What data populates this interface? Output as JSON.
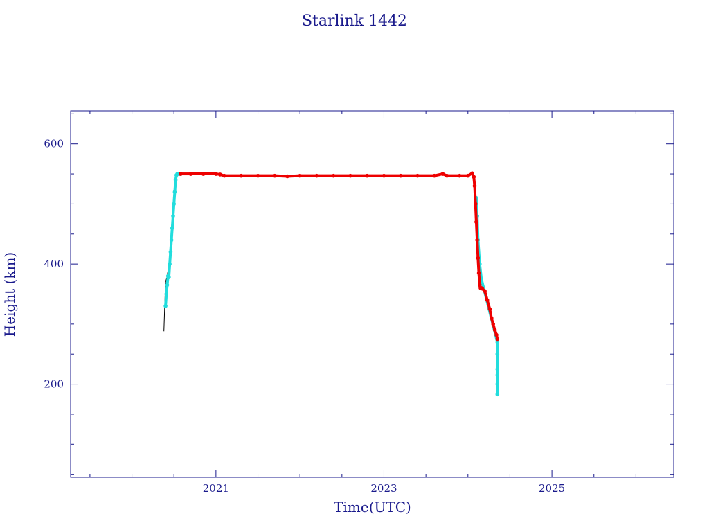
{
  "chart_data": {
    "type": "scatter",
    "title": "Starlink 1442",
    "xlabel": "Time(UTC)",
    "ylabel": "Height (km)",
    "xlim": [
      2019.27,
      2026.45
    ],
    "ylim": [
      45,
      655
    ],
    "x_major_ticks": [
      2021,
      2023,
      2025
    ],
    "x_minor_step": 0.5,
    "y_major_ticks": [
      200,
      400,
      600
    ],
    "y_minor_step": 50,
    "grid": false,
    "colors": {
      "axis": "#1a1a8c",
      "text": "#1a1a8c",
      "line": "#000000",
      "series_red": "#ee0000",
      "series_cyan": "#22dddd"
    },
    "series": [
      {
        "color": "black",
        "style": "line",
        "x": [
          2020.38,
          2020.39,
          2020.4,
          2020.42,
          2020.46,
          2020.5,
          2020.53,
          2020.55
        ],
        "y": [
          288,
          330,
          370,
          380,
          420,
          500,
          545,
          550
        ]
      },
      {
        "color": "cyan",
        "style": "dots",
        "x": [
          2020.4,
          2020.41,
          2020.42,
          2020.43,
          2020.44,
          2020.45,
          2020.46,
          2020.47,
          2020.48,
          2020.49,
          2020.5,
          2020.51,
          2020.52,
          2020.53,
          2020.54,
          2020.56,
          2020.58,
          2024.1,
          2024.11,
          2024.12,
          2024.14,
          2024.16,
          2024.35,
          2024.35,
          2024.35,
          2024.35,
          2024.35,
          2024.35
        ],
        "y": [
          330,
          350,
          365,
          380,
          378,
          400,
          420,
          440,
          460,
          480,
          500,
          520,
          540,
          548,
          550,
          550,
          550,
          510,
          480,
          440,
          400,
          375,
          270,
          250,
          225,
          215,
          200,
          183
        ]
      },
      {
        "color": "red",
        "style": "dots",
        "x": [
          2020.58,
          2020.7,
          2020.85,
          2021.0,
          2021.05,
          2021.1,
          2021.3,
          2021.5,
          2021.7,
          2021.85,
          2022.0,
          2022.2,
          2022.4,
          2022.6,
          2022.8,
          2023.0,
          2023.2,
          2023.4,
          2023.6,
          2023.7,
          2023.75,
          2023.9,
          2024.0,
          2024.05,
          2024.07,
          2024.08,
          2024.09,
          2024.1,
          2024.11,
          2024.12,
          2024.13,
          2024.14,
          2024.15,
          2024.16,
          2024.17,
          2024.2,
          2024.23,
          2024.26,
          2024.28,
          2024.3,
          2024.32,
          2024.34,
          2024.35
        ],
        "y": [
          550,
          550,
          550,
          550,
          549,
          547,
          547,
          547,
          547,
          546,
          547,
          547,
          547,
          547,
          547,
          547,
          547,
          547,
          547,
          550,
          547,
          547,
          547,
          551,
          545,
          530,
          500,
          470,
          440,
          410,
          385,
          365,
          360,
          360,
          359,
          355,
          340,
          325,
          310,
          300,
          290,
          282,
          275
        ]
      }
    ]
  }
}
